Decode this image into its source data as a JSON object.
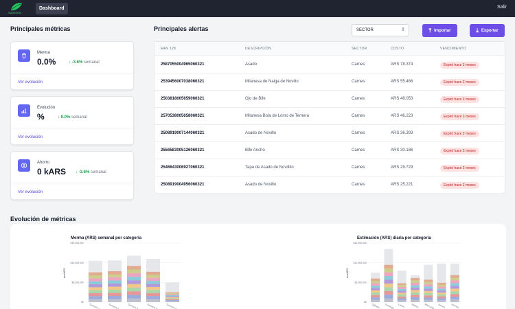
{
  "app": {
    "logo_text": "SAVERIS",
    "nav_tab": "Dashboard",
    "logout": "Salir"
  },
  "metrics": {
    "title": "Principales métricas",
    "cards": [
      {
        "label": "Merma",
        "value": "0.0%",
        "change": "-3.6%",
        "period": "semanal",
        "link": "Ver evolución",
        "icon": "trash-icon"
      },
      {
        "label": "Evolución",
        "value": "%",
        "change": "0.0%",
        "period": "semanal",
        "link": "Ver evolución",
        "icon": "bar-chart-icon"
      },
      {
        "label": "Ahorro",
        "value": "0 kARS",
        "change": "-3.6%",
        "period": "semanal",
        "link": "Ver evolución",
        "icon": "dollar-icon"
      }
    ]
  },
  "alerts": {
    "title": "Principales alertas",
    "sector_select": "SECTOR",
    "import_label": "Importar",
    "export_label": "Exportar",
    "columns": [
      "EAN 128",
      "DESCRIPCIÓN",
      "SECTOR",
      "COSTO",
      "VENCIMIENTO"
    ],
    "rows": [
      {
        "ean": "2587055004965060321",
        "desc": "Asado",
        "sector": "Carnes",
        "cost": "ARS 78.374",
        "status": "Expiró hace 2 meses"
      },
      {
        "ean": "2539456007038060321",
        "desc": "Milanesa de Nalga de Novillo",
        "sector": "Carnes",
        "cost": "ARS 55.466",
        "status": "Expiró hace 2 meses"
      },
      {
        "ean": "2503818005659060321",
        "desc": "Ojo de Bife",
        "sector": "Carnes",
        "cost": "ARS 48.053",
        "status": "Expiró hace 2 meses"
      },
      {
        "ean": "2570538005658060321",
        "desc": "Milanesa Bola de Lomo de Ternera",
        "sector": "Carnes",
        "cost": "ARS 46.223",
        "status": "Expiró hace 2 meses"
      },
      {
        "ean": "2508919007144060321",
        "desc": "Asado de Novillo",
        "sector": "Carnes",
        "cost": "ARS 36.393",
        "status": "Expiró hace 2 meses"
      },
      {
        "ean": "2556583005126060321",
        "desc": "Bife Ancho",
        "sector": "Carnes",
        "cost": "ARS 30.186",
        "status": "Expiró hace 2 meses"
      },
      {
        "ean": "2546643006927060321",
        "desc": "Tapa de Asado de Novillito",
        "sector": "Carnes",
        "cost": "ARS 29.729",
        "status": "Expiró hace 2 meses"
      },
      {
        "ean": "2508919004956060321",
        "desc": "Asado de Novillo",
        "sector": "Carnes",
        "cost": "ARS 25.221",
        "status": "Expiró hace 2 meses"
      }
    ]
  },
  "evolution": {
    "title": "Evolución de métricas"
  },
  "chart_data": [
    {
      "type": "bar",
      "title": "Merma (ARS) semanal por categoría",
      "ylabel": "envARS",
      "yticks": [
        "$15,000,000",
        "$10,000,000",
        "$5,000,000",
        "$0"
      ],
      "ylim": [
        0,
        15000000
      ],
      "categories": [
        "Semana 1",
        "Semana 2",
        "Semana 3",
        "Semana 4",
        "Semana 5"
      ],
      "totals": [
        10500000,
        10600000,
        11800000,
        11000000,
        5000000
      ],
      "stacked_portion": [
        0.72,
        0.74,
        0.78,
        0.7,
        0.5
      ]
    },
    {
      "type": "bar",
      "title": "Estimación (ARS) diaria por categoría",
      "ylabel": "envARS",
      "yticks": [
        "$15,000,000",
        "$10,000,000",
        "$5,000,000",
        "$0"
      ],
      "ylim": [
        0,
        15000000
      ],
      "categories": [
        "Sábado",
        "Domingo",
        "Lunes",
        "Martes",
        "Miércoles",
        "Jueves",
        "Viernes"
      ],
      "totals": [
        7500000,
        13500000,
        8000000,
        6800000,
        9500000,
        9800000,
        9800000
      ],
      "stacked_portion": [
        0.8,
        0.7,
        0.6,
        0.9,
        0.6,
        0.5,
        0.7
      ]
    }
  ],
  "colors": {
    "accent": "#6d4fe8",
    "topbar": "#1f2430",
    "badge_bg": "#fee2e2",
    "badge_text": "#b91c1c",
    "positive": "#16a34a",
    "stack": [
      "#b8b8c8",
      "#8ea0d8",
      "#e68a8a",
      "#9fd3a0",
      "#f2c277",
      "#a98bd8",
      "#7cc6d6",
      "#f09ab8",
      "#c9c97a",
      "#e0a080"
    ]
  }
}
